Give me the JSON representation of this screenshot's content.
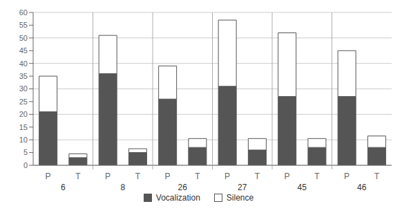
{
  "chart_data": {
    "type": "bar",
    "categories": [
      "P",
      "T",
      "P",
      "T",
      "P",
      "T",
      "P",
      "T",
      "P",
      "T",
      "P",
      "T"
    ],
    "groups": [
      "6",
      "8",
      "26",
      "27",
      "45",
      "46"
    ],
    "series": [
      {
        "name": "Vocalization",
        "color": "#555555",
        "values": [
          21,
          3,
          36,
          5,
          26,
          7,
          31,
          6,
          27,
          7,
          27,
          7
        ]
      },
      {
        "name": "Silence",
        "color": "#ffffff",
        "values": [
          14,
          1.5,
          15,
          1.5,
          13,
          3.5,
          26,
          4.5,
          25,
          3.5,
          18,
          4.5
        ]
      }
    ],
    "ylim": [
      0,
      60
    ],
    "yticks": [
      0,
      5,
      10,
      15,
      20,
      25,
      30,
      35,
      40,
      45,
      50,
      55,
      60
    ],
    "stacked": true,
    "grid": true,
    "legend": "bottom"
  }
}
